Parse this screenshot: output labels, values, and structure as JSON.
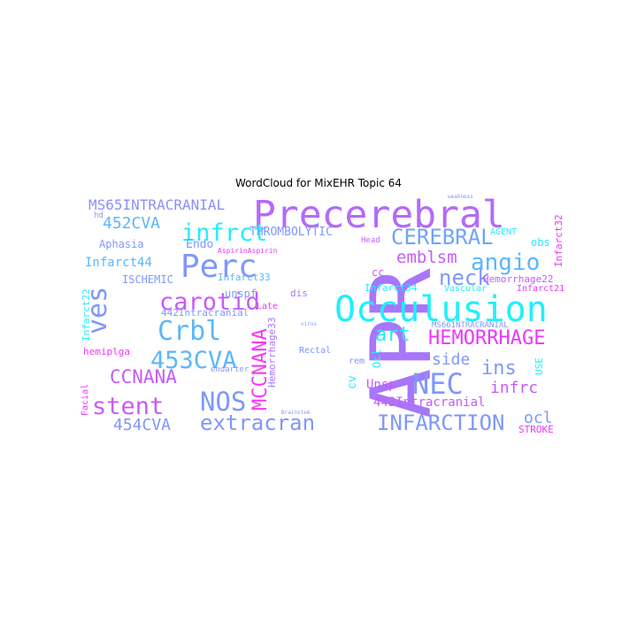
{
  "title": "WordCloud for MixEHR Topic 64",
  "words": {
    "apr": "APR",
    "precerebral": "Precerebral",
    "occulusion": "Occulusion",
    "perc": "Perc",
    "ves": "ves",
    "infrct": "infrct",
    "cerebral": "CEREBRAL",
    "angio": "angio",
    "emblsm": "emblsm",
    "neck": "neck",
    "carotid": "carotid",
    "crbl": "Crbl",
    "cva453": "453CVA",
    "cva452": "452CVA",
    "ms65": "MS65INTRACRANIAL",
    "nec": "NEC",
    "hemorrhage": "HEMORRHAGE",
    "infarction": "INFARCTION",
    "nos": "NOS",
    "extracran": "extracran",
    "stent": "stent",
    "ccnana": "CCNANA",
    "mccnana": "MCCNANA",
    "art": "art",
    "side": "side",
    "ins": "ins",
    "infrc": "infrc",
    "ocl": "ocl",
    "cva454": "454CVA",
    "intra443": "443Intracranial",
    "intra442": "442Intracranial",
    "endo": "Endo",
    "infarct44": "Infarct44",
    "infarct33": "Infarct33",
    "infarct34": "Infarct34",
    "infarct22": "Infarct22",
    "infarct32": "Infarct32",
    "infarct21": "Infarct21",
    "aphasia": "Aphasia",
    "ischemic": "ISCHEMIC",
    "thrombolytic": "THROMBOLYTIC",
    "aspirin": "AspirinAspirin",
    "hemorrhage22": "Hemorrhage22",
    "hemorrhage33": "Hemorrhage33",
    "ms66": "MS66INTRACRANIAL",
    "unspf": "unspf",
    "dis": "dis",
    "late": "Late",
    "rectal": "Rectal",
    "rem": "rem",
    "unsp": "Unsp",
    "cv": "cv",
    "ocl2": "Ocl",
    "cc": "cc",
    "head": "Head",
    "agent": "AGENT",
    "obs": "obs",
    "vascular": "Vascular",
    "use": "USE",
    "stroke": "STROKE",
    "hemiplga": "hemiplga",
    "endarter": "endarter",
    "facial": "Facial",
    "hd": "hd",
    "weakness": "weakness",
    "brainstem": "Brainstem",
    "virus": "virus"
  },
  "colors": {
    "cyan": "#22eefc",
    "lightblue": "#5cb6fb",
    "blue": "#7f98fb",
    "violet": "#a876fa",
    "purple": "#c65cf9",
    "magenta": "#e83af9",
    "pink": "#f43af8"
  }
}
